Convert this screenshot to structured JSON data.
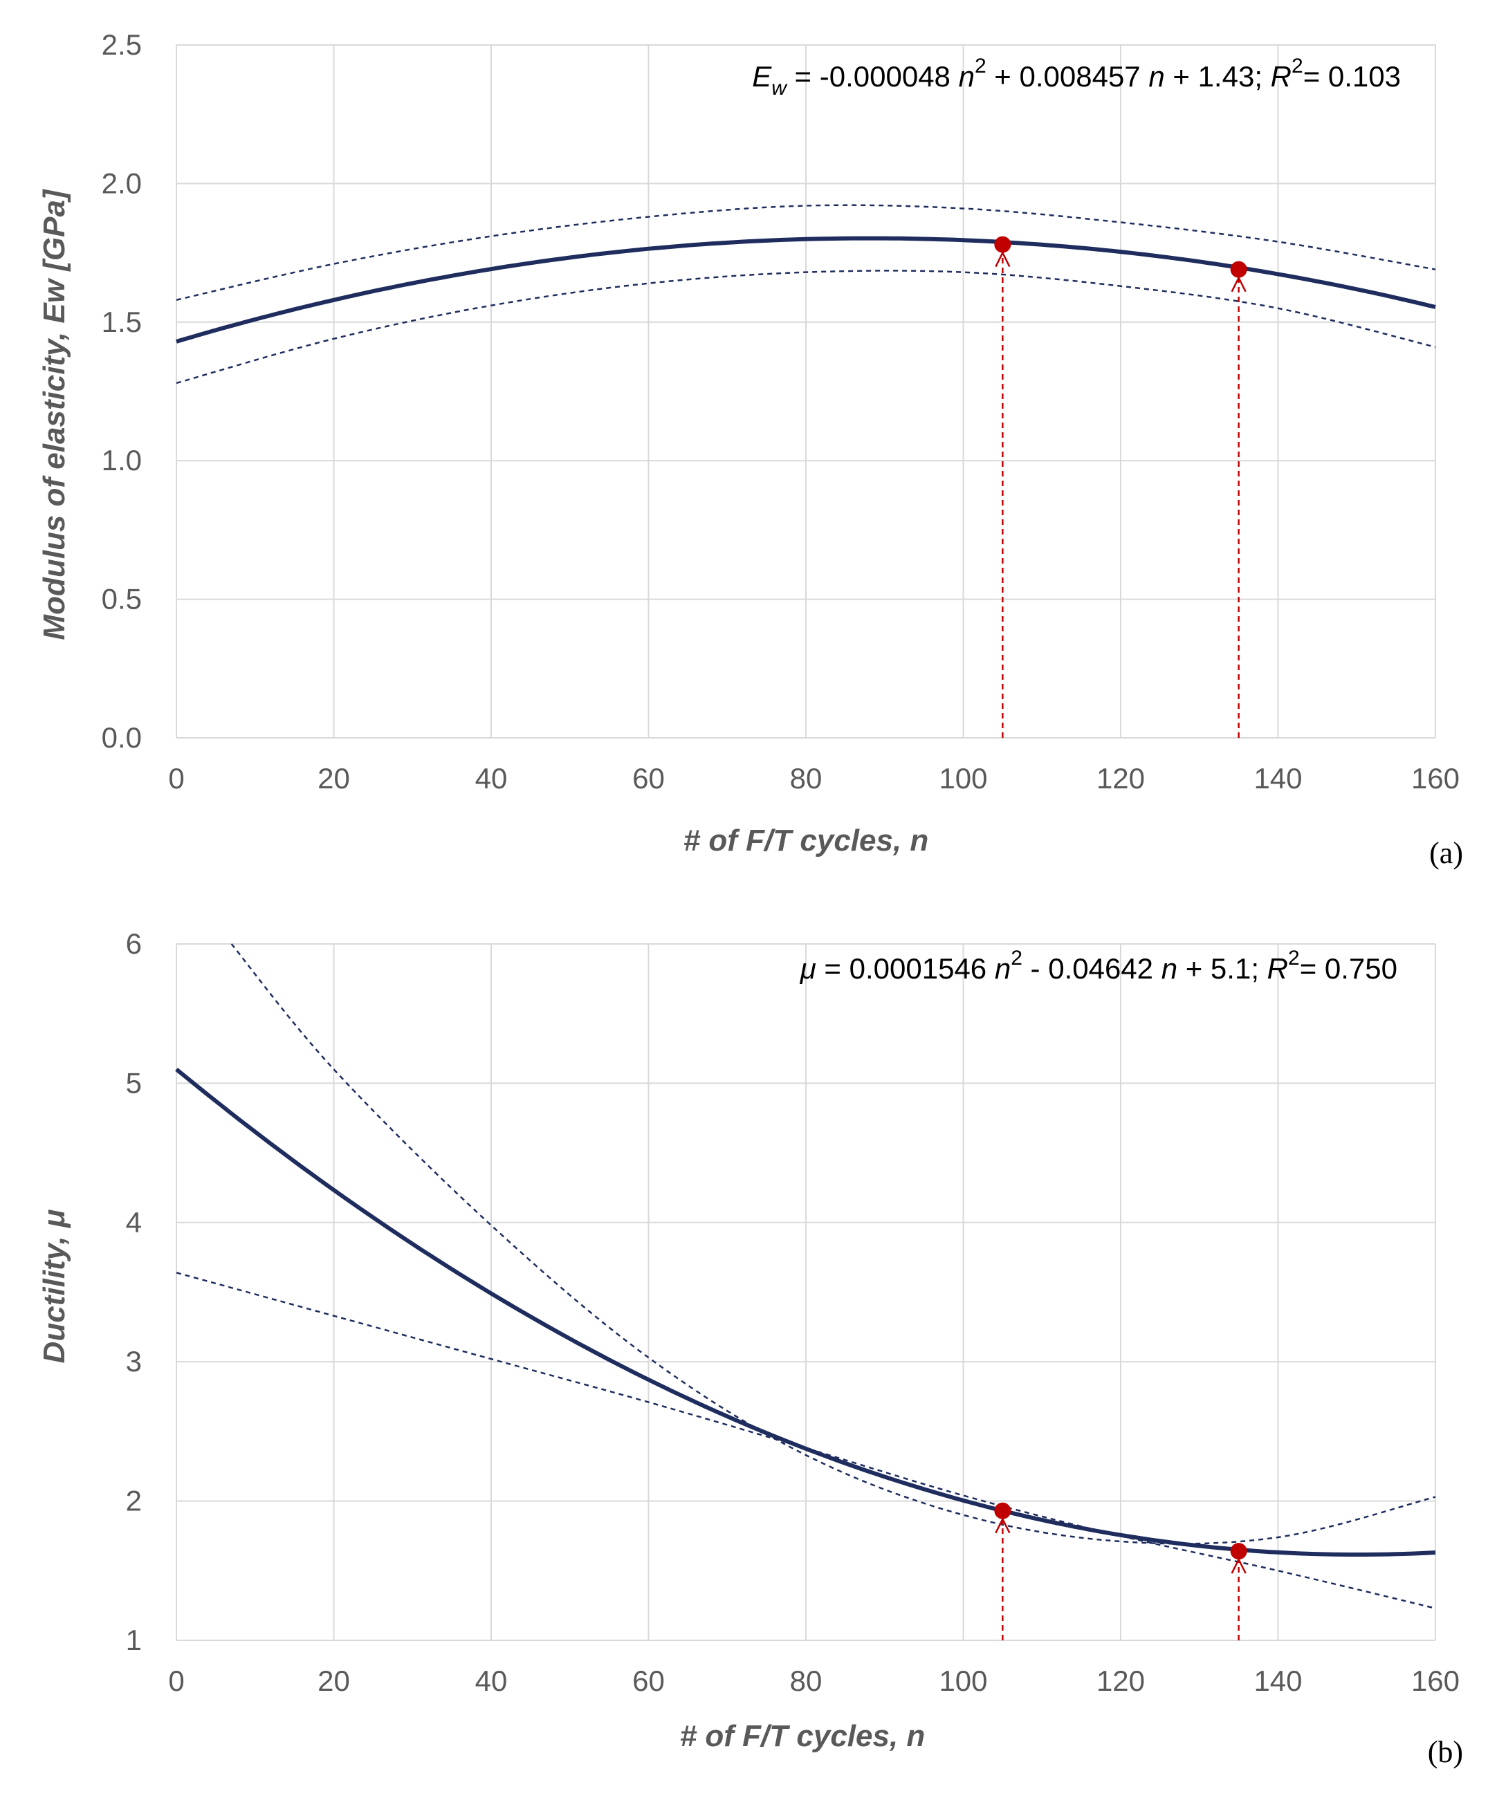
{
  "colors": {
    "fit_line": "#1f2d5e",
    "band_line": "#1f2d5e",
    "marker": "#c00000",
    "guide": "#c00000"
  },
  "chart_data": [
    {
      "type": "line",
      "panel_label": "(a)",
      "xlabel": "# of F/T cycles, n",
      "ylabel": "Modulus of elasticity, Ew [GPa]",
      "xlim": [
        0,
        160
      ],
      "ylim": [
        0.0,
        2.5
      ],
      "xticks": [
        0,
        20,
        40,
        60,
        80,
        100,
        120,
        140,
        160
      ],
      "xtick_labels": [
        "0",
        "20",
        "40",
        "60",
        "80",
        "100",
        "120",
        "140",
        "160"
      ],
      "yticks": [
        0.0,
        0.5,
        1.0,
        1.5,
        2.0,
        2.5
      ],
      "ytick_labels": [
        "0.0",
        "0.5",
        "1.0",
        "1.5",
        "2.0",
        "2.5"
      ],
      "grid": true,
      "equation": {
        "lhs_main": "E",
        "lhs_sub": "w",
        "mid1": " = -0.000048 ",
        "var1": "n",
        "exp1": "2",
        "mid2": " + 0.008457 ",
        "var2": "n",
        "mid3": " + 1.43; ",
        "r": "R",
        "r_exp": "2",
        "r_val": "= 0.103"
      },
      "fit": {
        "name": "Quadratic fit",
        "coefficients": [
          -4.8e-05,
          0.008457,
          1.43
        ]
      },
      "bands": [
        {
          "name": "Upper bound",
          "points": [
            [
              0,
              1.58
            ],
            [
              20,
              1.71
            ],
            [
              40,
              1.81
            ],
            [
              60,
              1.88
            ],
            [
              80,
              1.92
            ],
            [
              100,
              1.91
            ],
            [
              120,
              1.86
            ],
            [
              140,
              1.79
            ],
            [
              160,
              1.69
            ]
          ]
        },
        {
          "name": "Lower bound",
          "points": [
            [
              0,
              1.28
            ],
            [
              20,
              1.44
            ],
            [
              40,
              1.56
            ],
            [
              60,
              1.64
            ],
            [
              80,
              1.68
            ],
            [
              100,
              1.68
            ],
            [
              120,
              1.63
            ],
            [
              140,
              1.55
            ],
            [
              160,
              1.41
            ]
          ]
        }
      ],
      "markers": [
        {
          "x": 105,
          "y": 1.78
        },
        {
          "x": 135,
          "y": 1.69
        }
      ]
    },
    {
      "type": "line",
      "panel_label": "(b)",
      "xlabel": "# of F/T cycles, n",
      "ylabel": "Ductility, μ",
      "xlim": [
        0,
        160
      ],
      "ylim": [
        1,
        6
      ],
      "xticks": [
        0,
        20,
        40,
        60,
        80,
        100,
        120,
        140,
        160
      ],
      "xtick_labels": [
        "0",
        "20",
        "40",
        "60",
        "80",
        "100",
        "120",
        "140",
        "160"
      ],
      "yticks": [
        1,
        2,
        3,
        4,
        5,
        6
      ],
      "ytick_labels": [
        "1",
        "2",
        "3",
        "4",
        "5",
        "6"
      ],
      "grid": true,
      "equation": {
        "lhs_main": "μ",
        "lhs_sub": "",
        "mid1": " = 0.0001546 ",
        "var1": "n",
        "exp1": "2",
        "mid2": " - 0.04642 ",
        "var2": "n",
        "mid3": " + 5.1; ",
        "r": "R",
        "r_exp": "2",
        "r_val": "= 0.750"
      },
      "fit": {
        "name": "Quadratic fit",
        "coefficients": [
          0.0001546,
          -0.04642,
          5.1
        ]
      },
      "bands": [
        {
          "name": "Upper bound",
          "points": [
            [
              7,
              6.0
            ],
            [
              20,
              5.1
            ],
            [
              40,
              3.98
            ],
            [
              60,
              3.03
            ],
            [
              80,
              2.33
            ],
            [
              100,
              1.9
            ],
            [
              120,
              1.71
            ],
            [
              140,
              1.74
            ],
            [
              160,
              2.03
            ]
          ]
        },
        {
          "name": "Lower bound",
          "points": [
            [
              0,
              3.64
            ],
            [
              20,
              3.33
            ],
            [
              40,
              3.02
            ],
            [
              60,
              2.71
            ],
            [
              80,
              2.38
            ],
            [
              100,
              2.04
            ],
            [
              120,
              1.75
            ],
            [
              140,
              1.5
            ],
            [
              160,
              1.23
            ]
          ]
        }
      ],
      "markers": [
        {
          "x": 105,
          "y": 1.93
        },
        {
          "x": 135,
          "y": 1.64
        }
      ]
    }
  ]
}
